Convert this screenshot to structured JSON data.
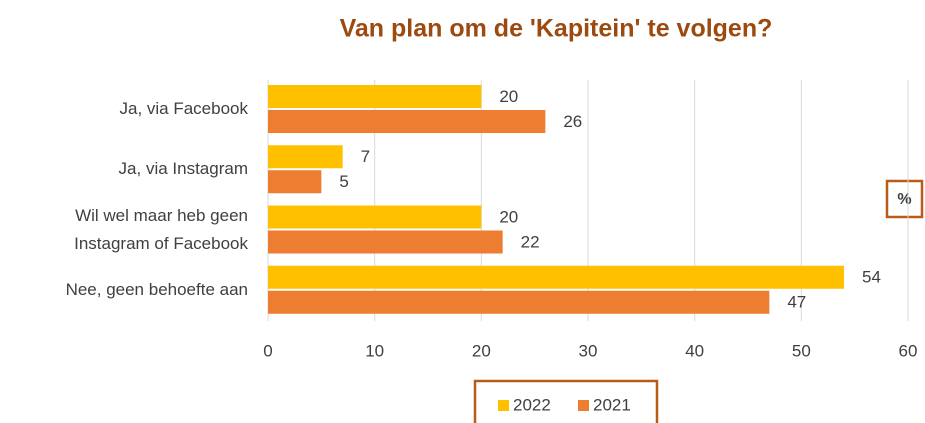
{
  "chart_data": {
    "type": "bar",
    "orientation": "horizontal",
    "title": "Van plan om de 'Kapitein' te volgen?",
    "categories": [
      "Ja, via Facebook",
      "Ja, via Instagram",
      "Wil wel maar heb geen Instagram of Facebook",
      "Nee, geen behoefte aan"
    ],
    "series": [
      {
        "name": "2022",
        "color": "#ffc000",
        "values": [
          20,
          7,
          20,
          54
        ]
      },
      {
        "name": "2021",
        "color": "#ed7d31",
        "values": [
          26,
          5,
          22,
          47
        ]
      }
    ],
    "xlim": [
      0,
      60
    ],
    "xticks": [
      0,
      10,
      20,
      30,
      40,
      50,
      60
    ],
    "grid": true,
    "annotation": "%",
    "legend": "bottom"
  }
}
